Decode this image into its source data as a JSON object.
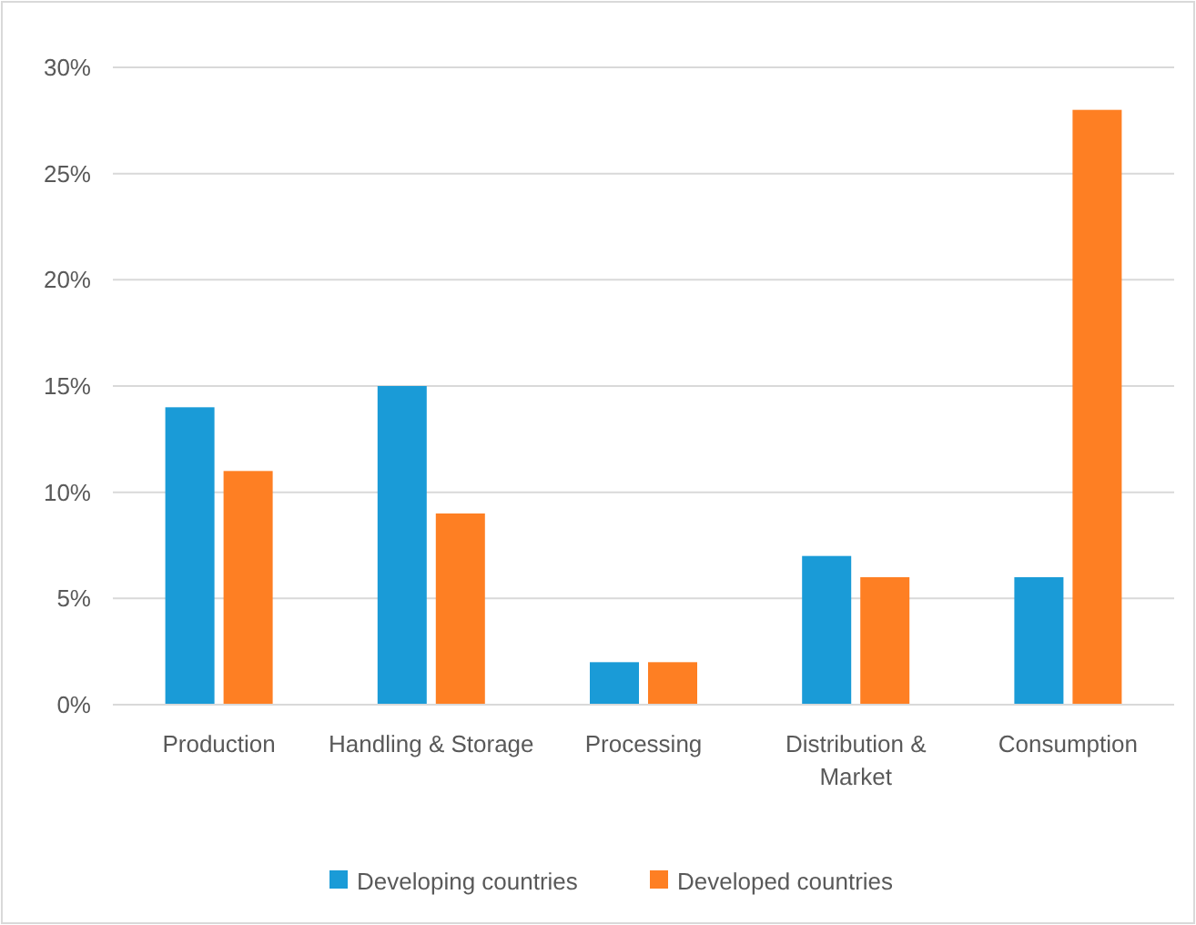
{
  "chart_data": {
    "type": "bar",
    "categories": [
      "Production",
      "Handling & Storage",
      "Processing",
      "Distribution & Market",
      "Consumption"
    ],
    "series": [
      {
        "name": "Developing countries",
        "color": "#1a9bd7",
        "values": [
          14,
          15,
          2,
          7,
          6
        ]
      },
      {
        "name": "Developed countries",
        "color": "#fe7f23",
        "values": [
          11,
          9,
          2,
          6,
          28
        ]
      }
    ],
    "ylim": [
      0,
      30
    ],
    "yticks": [
      {
        "value": 0,
        "label": "0%"
      },
      {
        "value": 5,
        "label": "5%"
      },
      {
        "value": 10,
        "label": "10%"
      },
      {
        "value": 15,
        "label": "15%"
      },
      {
        "value": 20,
        "label": "20%"
      },
      {
        "value": 25,
        "label": "25%"
      },
      {
        "value": 30,
        "label": "30%"
      }
    ],
    "grid": "y",
    "legend": "bottom"
  }
}
